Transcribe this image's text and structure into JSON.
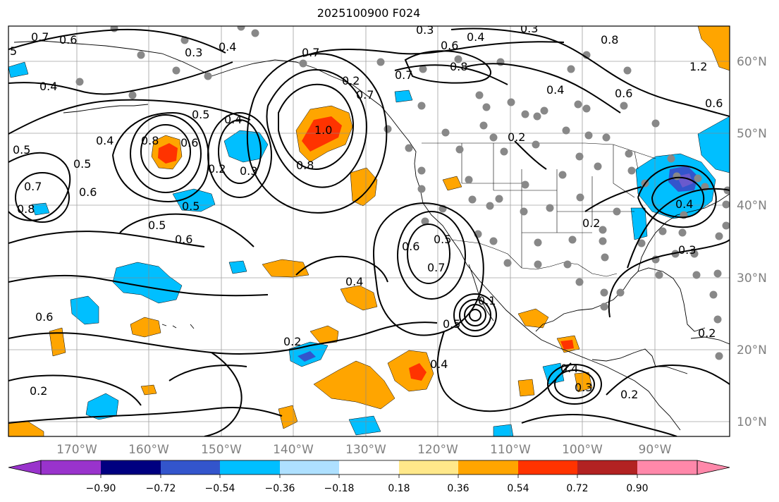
{
  "title": "2025100900 F024",
  "lon_ticks": [
    "170°W",
    "160°W",
    "150°W",
    "140°W",
    "130°W",
    "120°W",
    "110°W",
    "100°W",
    "90°W"
  ],
  "lat_ticks": [
    "60°N",
    "50°N",
    "40°N",
    "30°N",
    "20°N",
    "10°N"
  ],
  "colorbar": {
    "ticks": [
      "−0.90",
      "−0.72",
      "−0.54",
      "−0.36",
      "−0.18",
      "0.18",
      "0.36",
      "0.54",
      "0.72",
      "0.90"
    ],
    "colors": [
      "#9933cc",
      "#000080",
      "#3355cc",
      "#00bfff",
      "#aee0ff",
      "#ffffff",
      "#ffe88a",
      "#ffa500",
      "#ff3300",
      "#b22222",
      "#ff88aa"
    ]
  },
  "contour_labels": [
    "0.7",
    "0.6",
    "5",
    "0.3",
    "0.4",
    "0.3",
    "0.4",
    "0.3",
    "0.6",
    "0.7",
    "0.8",
    "0.8",
    "1.2",
    "0.4",
    "0.6",
    "0.7",
    "0.4",
    "0.5",
    "0.4",
    "0.8",
    "0.6",
    "0.2",
    "0.3",
    "1.0",
    "0.8",
    "0.5",
    "0.5",
    "0.6",
    "0.7",
    "0.8",
    "0.5",
    "0.6",
    "0.4",
    "0.5",
    "0.6",
    "0.6",
    "0.5",
    "0.7",
    "0.4",
    "0.2",
    "0.2",
    "0.2",
    "0.5",
    "0.4",
    "0.4",
    "0.3",
    "0.2",
    "0.3",
    "0.2",
    "0.4",
    "0.7",
    "0.2",
    "0.6",
    "0.2",
    "0.1"
  ]
}
